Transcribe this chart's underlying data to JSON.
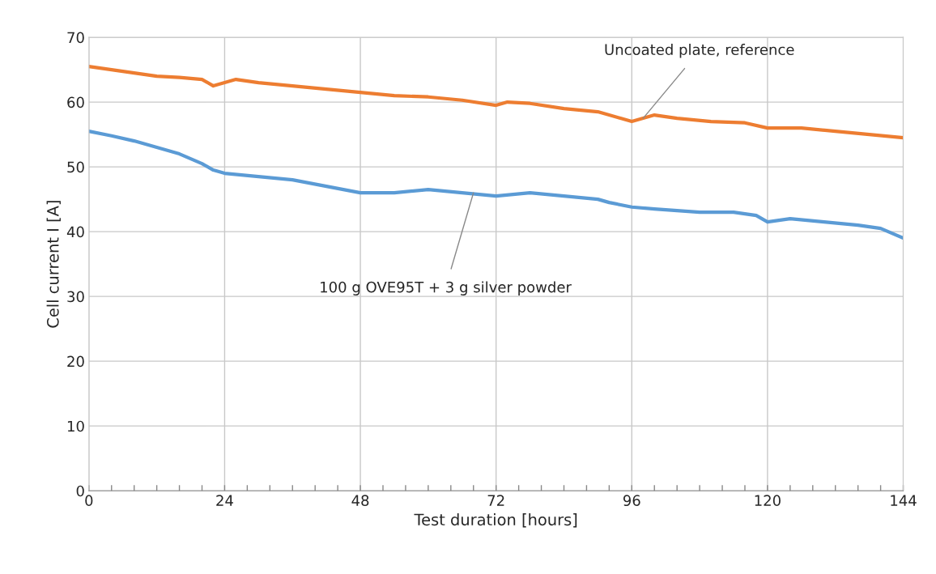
{
  "chart_data": {
    "type": "line",
    "xlabel": "Test duration [hours]",
    "ylabel": "Cell current I [A]",
    "xlim": [
      0,
      144
    ],
    "ylim": [
      0,
      70
    ],
    "xticks": [
      0,
      {
        "value": 4,
        "label": null
      },
      {
        "value": 8,
        "label": null
      },
      {
        "value": 12,
        "label": null
      },
      {
        "value": 16,
        "label": null
      },
      {
        "value": 20,
        "label": null
      },
      24,
      {
        "value": 28,
        "label": null
      },
      {
        "value": 32,
        "label": null
      },
      {
        "value": 36,
        "label": null
      },
      {
        "value": 40,
        "label": null
      },
      {
        "value": 44,
        "label": null
      },
      48,
      {
        "value": 52,
        "label": null
      },
      {
        "value": 56,
        "label": null
      },
      {
        "value": 60,
        "label": null
      },
      {
        "value": 64,
        "label": null
      },
      {
        "value": 68,
        "label": null
      },
      72,
      {
        "value": 76,
        "label": null
      },
      {
        "value": 80,
        "label": null
      },
      {
        "value": 84,
        "label": null
      },
      {
        "value": 88,
        "label": null
      },
      {
        "value": 92,
        "label": null
      },
      96,
      {
        "value": 100,
        "label": null
      },
      {
        "value": 104,
        "label": null
      },
      {
        "value": 108,
        "label": null
      },
      {
        "value": 112,
        "label": null
      },
      {
        "value": 116,
        "label": null
      },
      120,
      {
        "value": 124,
        "label": null
      },
      {
        "value": 128,
        "label": null
      },
      {
        "value": 132,
        "label": null
      },
      {
        "value": 136,
        "label": null
      },
      {
        "value": 140,
        "label": null
      },
      144
    ],
    "yticks": [
      0,
      10,
      20,
      30,
      40,
      50,
      60,
      70
    ],
    "grid": "xy_major",
    "legend": false,
    "series": [
      {
        "color": "#ed7d31",
        "x": [
          0,
          4,
          8,
          12,
          16,
          20,
          22,
          24,
          26,
          30,
          36,
          42,
          48,
          54,
          60,
          66,
          72,
          74,
          78,
          84,
          90,
          94,
          96,
          98,
          100,
          104,
          110,
          116,
          120,
          126,
          132,
          138,
          144
        ],
        "values": [
          65.5,
          65,
          64.5,
          64,
          63.8,
          63.5,
          62.5,
          63,
          63.5,
          63,
          62.5,
          62,
          61.5,
          61,
          60.8,
          60.3,
          59.5,
          60,
          59.8,
          59,
          58.5,
          57.5,
          57,
          57.5,
          58,
          57.5,
          57,
          56.8,
          56,
          56,
          55.5,
          55,
          54.5
        ]
      },
      {
        "color": "#5b9bd5",
        "x": [
          0,
          4,
          8,
          12,
          16,
          20,
          22,
          24,
          30,
          36,
          42,
          48,
          54,
          60,
          66,
          72,
          78,
          84,
          90,
          92,
          96,
          100,
          108,
          114,
          118,
          120,
          124,
          130,
          136,
          140,
          144
        ],
        "values": [
          55.5,
          54.8,
          54,
          53,
          52,
          50.5,
          49.5,
          49,
          48.5,
          48,
          47,
          46,
          46,
          46.5,
          46,
          45.5,
          46,
          45.5,
          45,
          44.5,
          43.8,
          43.5,
          43,
          43,
          42.5,
          41.5,
          42,
          41.5,
          41,
          40.5,
          39
        ]
      }
    ],
    "annotations": [
      {
        "text": "Uncoated plate, reference",
        "x": 98,
        "y": 57.5
      },
      {
        "text": "100 g OVE95T + 3 g silver powder",
        "x": 68,
        "y": 46
      }
    ]
  }
}
